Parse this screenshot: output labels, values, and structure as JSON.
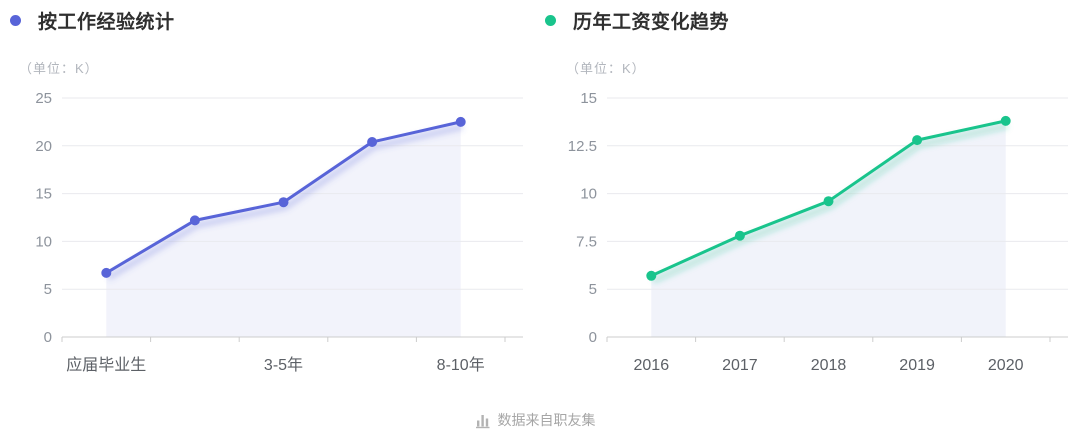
{
  "chart_data": [
    {
      "id": "experience",
      "type": "line",
      "title": "按工作经验统计",
      "unit_label": "（单位：K）",
      "categories": [
        "应届毕业生",
        "",
        "3-5年",
        "",
        "8-10年"
      ],
      "values": [
        6.7,
        12.2,
        14.1,
        20.4,
        22.5
      ],
      "y_tick_values": [
        0,
        5,
        10,
        15,
        20,
        25
      ],
      "y_tick_labels": [
        "0",
        "5",
        "10",
        "15",
        "20",
        "25"
      ],
      "ylim": [
        0,
        25
      ],
      "grid": true,
      "legend_position": "none",
      "line_color": "#5864d8",
      "point_color": "#5864d8",
      "area_color": "#f2f3fb"
    },
    {
      "id": "yearly-trend",
      "type": "line",
      "title": "历年工资变化趋势",
      "unit_label": "（单位：K）",
      "categories": [
        "2016",
        "2017",
        "2018",
        "2019",
        "2020"
      ],
      "values": [
        5.7,
        7.8,
        9.6,
        12.8,
        13.8
      ],
      "y_tick_values": [
        0,
        5,
        7.5,
        10,
        12.5,
        15
      ],
      "y_tick_labels": [
        "0",
        "5",
        "7.5",
        "10",
        "12.5",
        "15"
      ],
      "ylim": [
        0,
        15
      ],
      "grid": true,
      "legend_position": "none",
      "line_color": "#19c48c",
      "point_color": "#19c48c",
      "area_color": "#f1f3fa"
    }
  ],
  "footer": {
    "text": "数据来自职友集",
    "icon": "bar-chart-icon"
  },
  "theme": {
    "background": "#ffffff",
    "grid_color": "#e9eaee",
    "axis_color": "#cccccc",
    "y_label_color": "#8d939c",
    "x_label_color": "#5c6066",
    "title_color": "#2f2f2f",
    "unit_color": "#b2b6bd",
    "footer_color": "#a6a6a6"
  }
}
